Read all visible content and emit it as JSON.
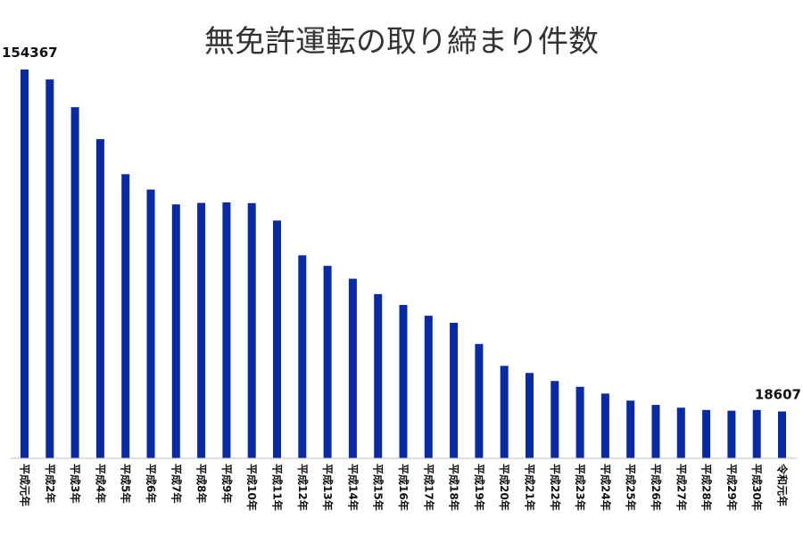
{
  "chart_data": {
    "type": "bar",
    "title": "無免許運転の取り締まり件数",
    "xlabel": "",
    "ylabel": "",
    "categories": [
      "平成元年",
      "平成2年",
      "平成3年",
      "平成4年",
      "平成5年",
      "平成6年",
      "平成7年",
      "平成8年",
      "平成9年",
      "平成10年",
      "平成11年",
      "平成12年",
      "平成13年",
      "平成14年",
      "平成15年",
      "平成16年",
      "平成17年",
      "平成18年",
      "平成19年",
      "平成20年",
      "平成21年",
      "平成22年",
      "平成23年",
      "平成24年",
      "平成25年",
      "平成26年",
      "平成27年",
      "平成28年",
      "平成29年",
      "平成30年",
      "令和元年"
    ],
    "values": [
      154367,
      150400,
      139400,
      126700,
      112800,
      106700,
      100800,
      101400,
      101600,
      101300,
      94400,
      80600,
      76400,
      71300,
      65200,
      60900,
      56600,
      53800,
      45400,
      36700,
      33900,
      30700,
      28400,
      25700,
      22900,
      21200,
      20100,
      19200,
      18900,
      19200,
      18607
    ],
    "data_labels": [
      {
        "index": 0,
        "text": "154367"
      },
      {
        "index": 30,
        "text": "18607"
      }
    ],
    "ylim": [
      0,
      160000
    ],
    "grid": false,
    "legend": "none",
    "bar_color": "#0a2aa5"
  }
}
